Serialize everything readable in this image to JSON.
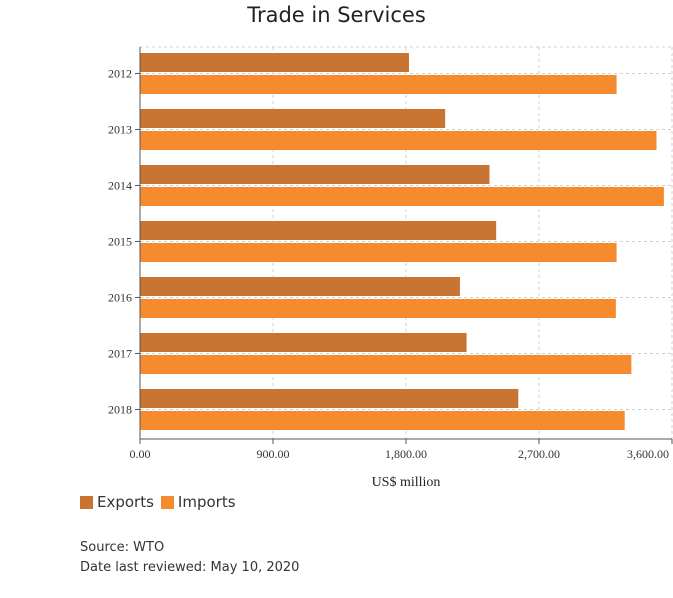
{
  "chart_data": {
    "type": "bar",
    "orientation": "horizontal",
    "title": "Trade in Services",
    "xlabel": "US$ million",
    "ylabel": "",
    "categories": [
      "2012",
      "2013",
      "2014",
      "2015",
      "2016",
      "2017",
      "2018"
    ],
    "series": [
      {
        "name": "Exports",
        "color": "#c87533",
        "values": [
          1820,
          2065,
          2365,
          2410,
          2165,
          2210,
          2560
        ]
      },
      {
        "name": "Imports",
        "color": "#f58a2e",
        "values": [
          3225,
          3495,
          3545,
          3225,
          3220,
          3325,
          3280
        ]
      }
    ],
    "xlim": [
      0,
      3600
    ],
    "xticks": [
      0,
      900,
      1800,
      2700,
      3600
    ],
    "xtick_labels": [
      "0.00",
      "900.00",
      "1,800.00",
      "2,700.00",
      "3,600.00"
    ],
    "grid": true,
    "legend": "bottom-left"
  },
  "footer": {
    "source": "Source: WTO",
    "reviewed": "Date last reviewed: May 10, 2020"
  }
}
